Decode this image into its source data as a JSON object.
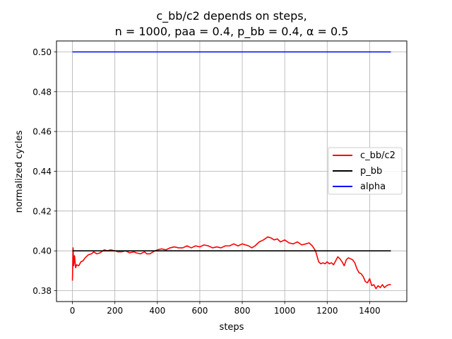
{
  "chart_data": {
    "type": "line",
    "title": [
      "c_bb/c2 depends on steps,",
      "n = 1000, paa = 0.4, p_bb = 0.4, α = 0.5"
    ],
    "xlabel": "steps",
    "ylabel": "normalized cycles",
    "xlim": [
      -75,
      1575
    ],
    "ylim": [
      0.3745,
      0.5055
    ],
    "xticks": [
      0,
      200,
      400,
      600,
      800,
      1000,
      1200,
      1400
    ],
    "yticks": [
      0.38,
      0.4,
      0.42,
      0.44,
      0.46,
      0.48,
      0.5
    ],
    "ytick_labels": [
      "0.38",
      "0.40",
      "0.42",
      "0.44",
      "0.46",
      "0.48",
      "0.50"
    ],
    "grid": true,
    "legend_position": "center-right",
    "series": [
      {
        "name": "c_bb/c2",
        "color": "#ff0000",
        "x": [
          0,
          3,
          6,
          10,
          15,
          20,
          30,
          40,
          50,
          60,
          75,
          90,
          100,
          115,
          130,
          150,
          165,
          180,
          200,
          215,
          230,
          250,
          270,
          290,
          300,
          320,
          340,
          350,
          365,
          380,
          400,
          420,
          440,
          460,
          480,
          500,
          520,
          540,
          560,
          580,
          600,
          620,
          640,
          660,
          680,
          700,
          720,
          740,
          760,
          780,
          800,
          815,
          830,
          845,
          860,
          880,
          900,
          920,
          935,
          950,
          965,
          980,
          1000,
          1020,
          1040,
          1060,
          1080,
          1100,
          1115,
          1130,
          1145,
          1160,
          1170,
          1180,
          1190,
          1200,
          1210,
          1220,
          1230,
          1240,
          1250,
          1260,
          1270,
          1280,
          1290,
          1300,
          1310,
          1320,
          1330,
          1340,
          1350,
          1360,
          1370,
          1380,
          1390,
          1400,
          1410,
          1420,
          1430,
          1440,
          1450,
          1460,
          1470,
          1480,
          1490,
          1500
        ],
        "y": [
          0.385,
          0.4015,
          0.3925,
          0.3975,
          0.3915,
          0.393,
          0.3925,
          0.3945,
          0.395,
          0.3965,
          0.398,
          0.3985,
          0.3995,
          0.3985,
          0.399,
          0.4005,
          0.4,
          0.4005,
          0.4,
          0.3995,
          0.3995,
          0.4,
          0.399,
          0.3995,
          0.399,
          0.3985,
          0.3995,
          0.3985,
          0.3985,
          0.3995,
          0.4005,
          0.401,
          0.4005,
          0.4015,
          0.402,
          0.4015,
          0.4015,
          0.4025,
          0.4015,
          0.4025,
          0.402,
          0.403,
          0.4025,
          0.4015,
          0.402,
          0.4015,
          0.4025,
          0.4025,
          0.4035,
          0.4025,
          0.4035,
          0.403,
          0.4025,
          0.4015,
          0.4025,
          0.4045,
          0.4055,
          0.407,
          0.4065,
          0.4055,
          0.406,
          0.4045,
          0.4055,
          0.404,
          0.4035,
          0.4045,
          0.403,
          0.4035,
          0.404,
          0.4025,
          0.4,
          0.3945,
          0.3935,
          0.394,
          0.3935,
          0.3945,
          0.3935,
          0.394,
          0.393,
          0.395,
          0.397,
          0.396,
          0.3945,
          0.3925,
          0.3955,
          0.3965,
          0.396,
          0.3955,
          0.394,
          0.391,
          0.389,
          0.3885,
          0.387,
          0.3845,
          0.384,
          0.386,
          0.3825,
          0.383,
          0.381,
          0.3825,
          0.3815,
          0.383,
          0.3815,
          0.3825,
          0.383,
          0.383
        ]
      },
      {
        "name": "p_bb",
        "color": "#000000",
        "x": [
          0,
          1500
        ],
        "y": [
          0.4,
          0.4
        ]
      },
      {
        "name": "alpha",
        "color": "#0000ff",
        "x": [
          0,
          1500
        ],
        "y": [
          0.5,
          0.5
        ]
      }
    ]
  }
}
